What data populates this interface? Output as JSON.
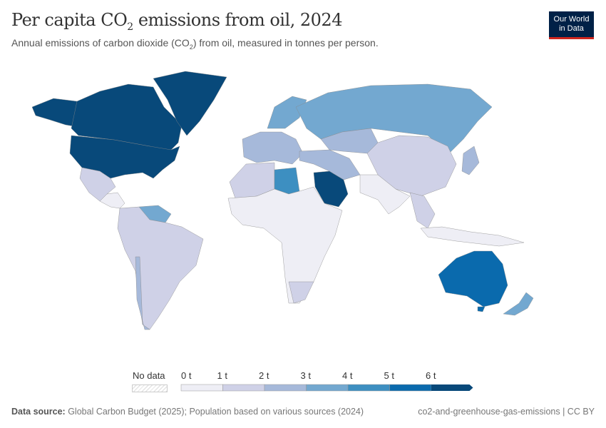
{
  "header": {
    "title_pre": "Per capita CO",
    "title_sub": "2",
    "title_post": " emissions from oil, 2024",
    "subtitle_pre": "Annual emissions of carbon dioxide (CO",
    "subtitle_sub": "2",
    "subtitle_post": ") from oil, measured in tonnes per person.",
    "logo_line1": "Our World",
    "logo_line2": "in Data"
  },
  "legend": {
    "no_data_label": "No data",
    "ticks": [
      "0 t",
      "1 t",
      "2 t",
      "3 t",
      "4 t",
      "5 t",
      "6 t"
    ],
    "bins": [
      {
        "range": "0-1",
        "color": "#eeeef5"
      },
      {
        "range": "1-2",
        "color": "#cfd1e7"
      },
      {
        "range": "2-3",
        "color": "#a6b9da"
      },
      {
        "range": "3-4",
        "color": "#73a8d0"
      },
      {
        "range": "4-5",
        "color": "#3d8fc1"
      },
      {
        "range": "5-6",
        "color": "#0a6aad"
      },
      {
        "range": ">6",
        "color": "#08497a"
      }
    ],
    "no_data_color": "#f2f2f2"
  },
  "footer": {
    "source_label": "Data source:",
    "source_text": " Global Carbon Budget (2025); Population based on various sources (2024)",
    "right_text": "co2-and-greenhouse-gas-emissions | CC BY"
  }
}
